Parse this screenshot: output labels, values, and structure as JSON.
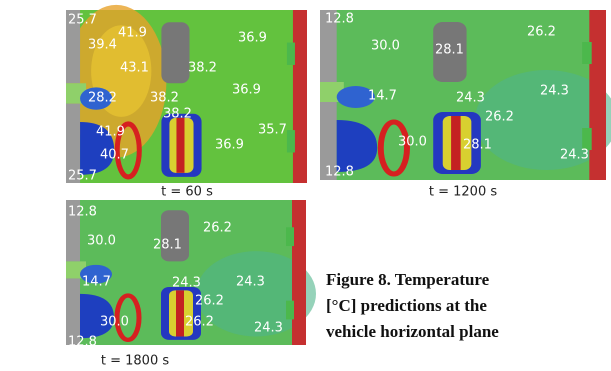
{
  "panels": [
    {
      "time": "t = 60 s",
      "labels": [
        "25.7",
        "39.4",
        "41.9",
        "43.1",
        "38.2",
        "36.9",
        "28.2",
        "38.2",
        "36.9",
        "38.2",
        "35.7",
        "41.9",
        "40.7",
        "36.9",
        "25.7"
      ]
    },
    {
      "time": "t = 1200 s",
      "labels": [
        "12.8",
        "26.2",
        "30.0",
        "28.1",
        "14.7",
        "24.3",
        "24.3",
        "26.2",
        "30.0",
        "28.1",
        "24.3",
        "12.8"
      ]
    },
    {
      "time": "t = 1800 s",
      "labels": [
        "12.8",
        "26.2",
        "30.0",
        "28.1",
        "14.7",
        "24.3",
        "24.3",
        "26.2",
        "30.0",
        "26.2",
        "24.3",
        "12.8"
      ]
    }
  ],
  "caption": [
    "Figure 8. Temperature",
    "[°C] predictions at the",
    "vehicle horizontal plane"
  ]
}
